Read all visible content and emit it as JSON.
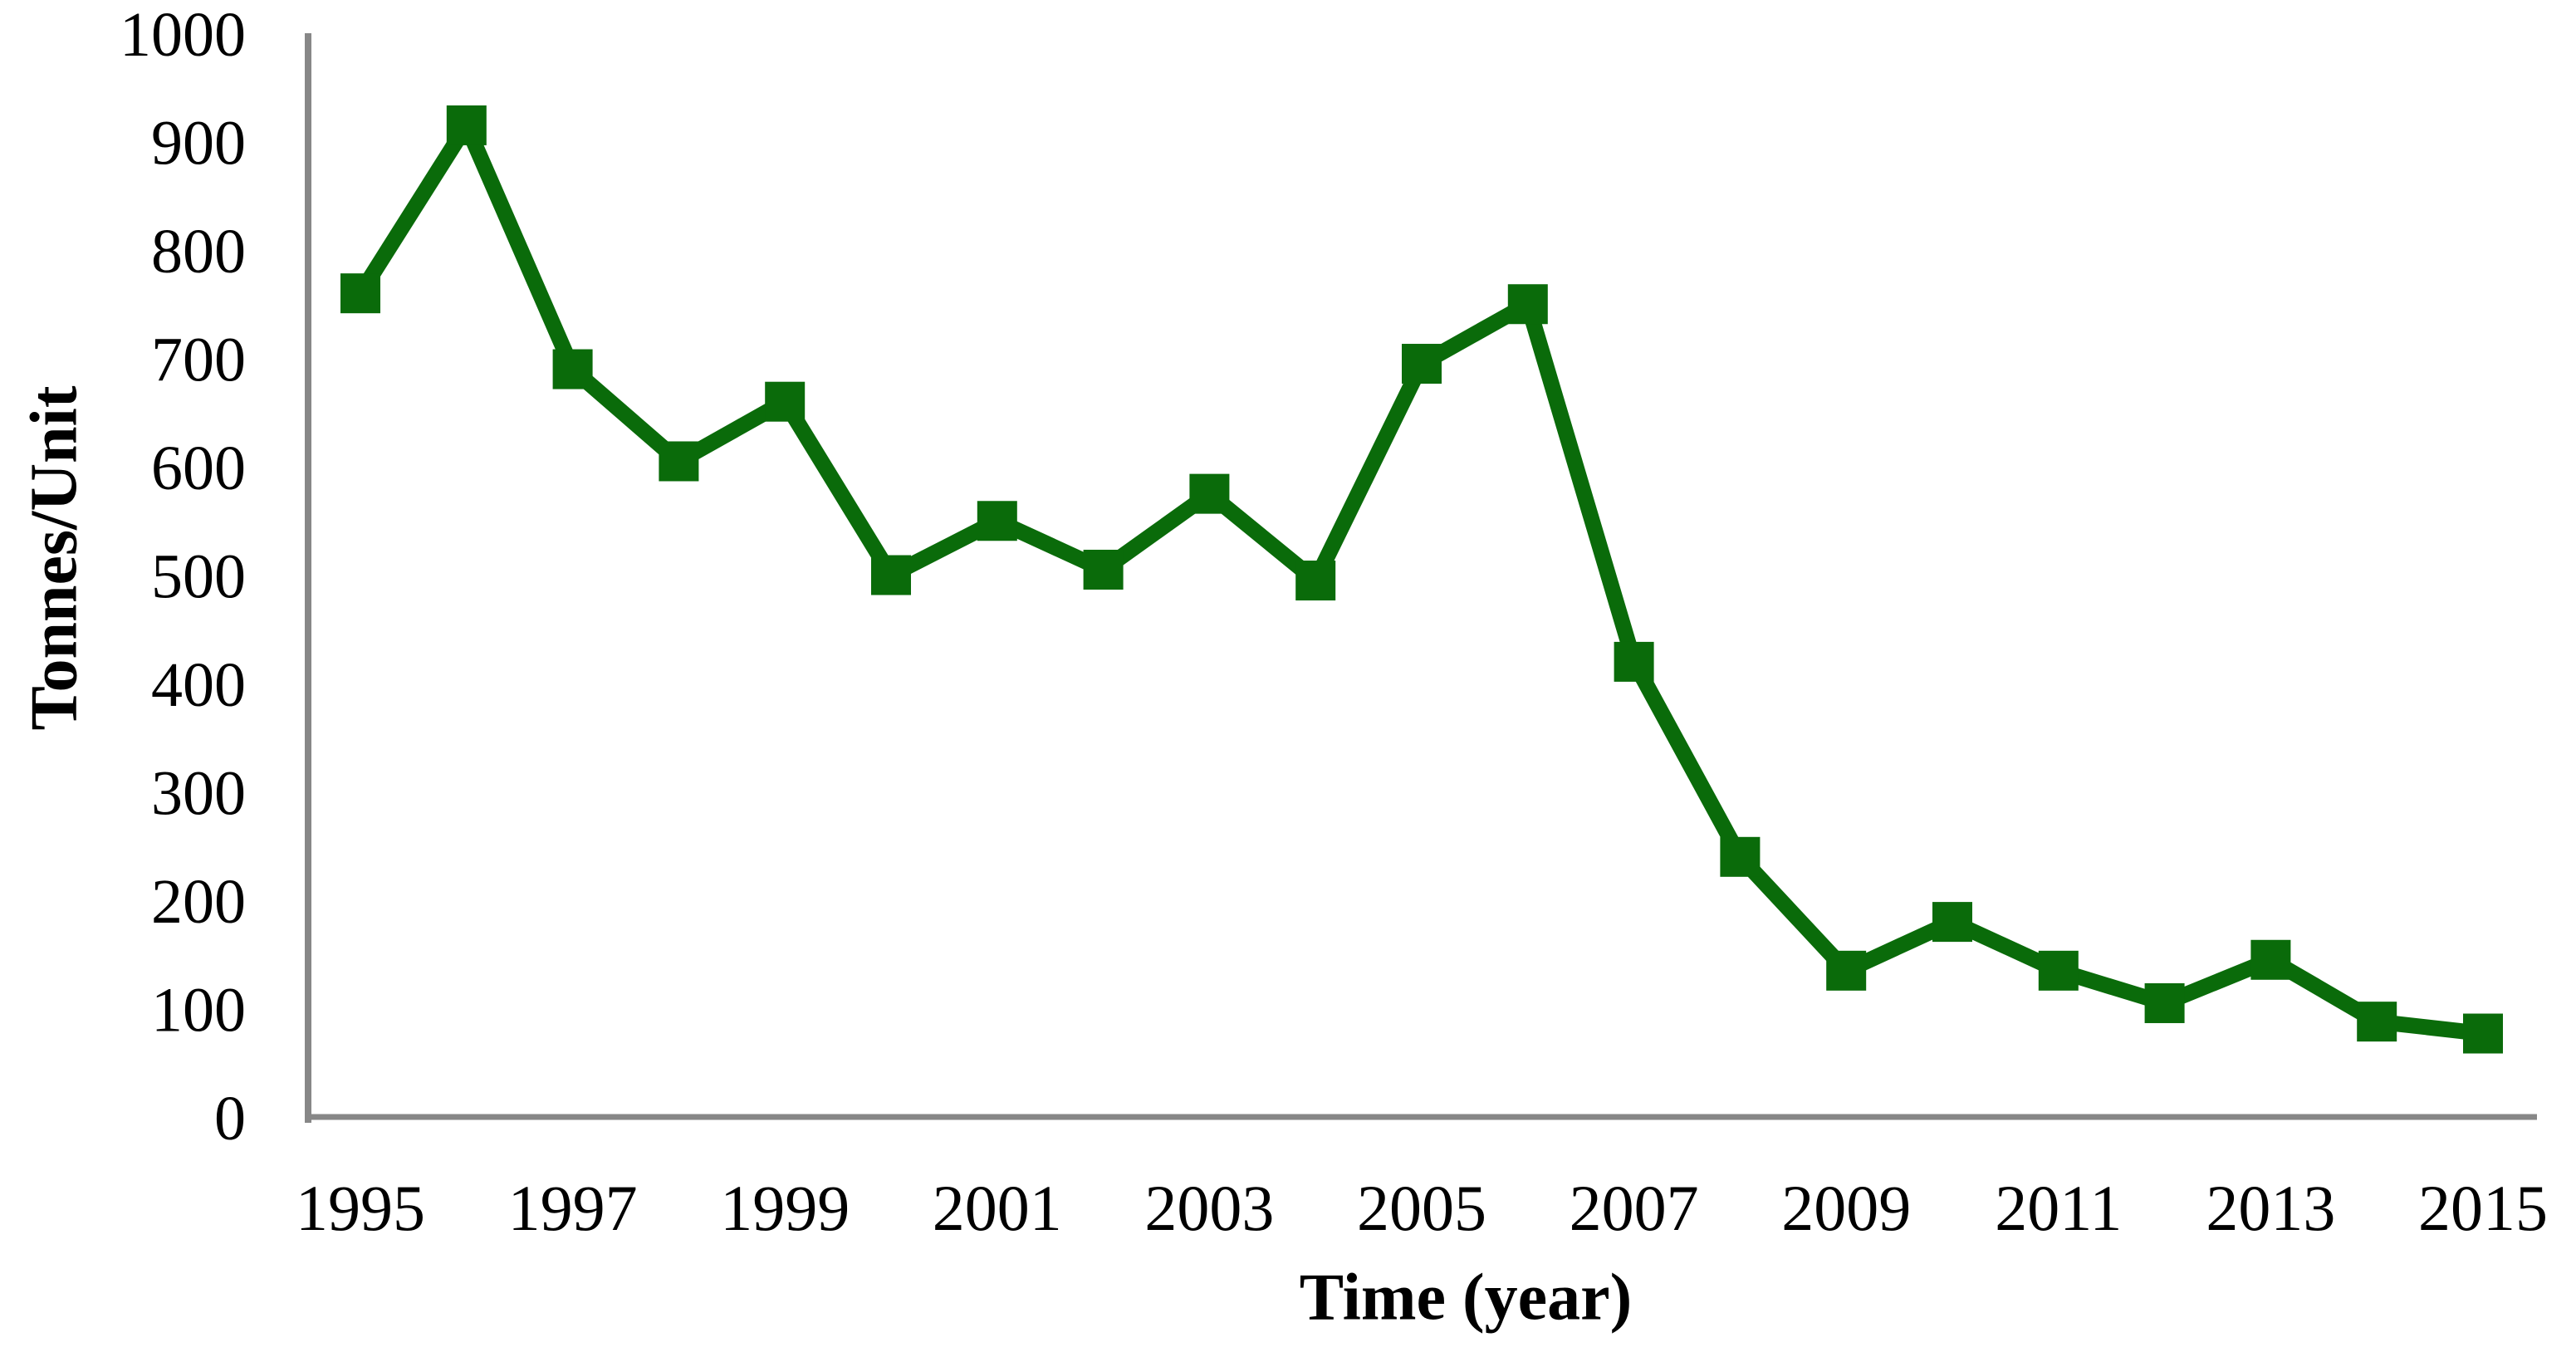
{
  "chart_data": {
    "type": "line",
    "title": "",
    "xlabel": "Time (year)",
    "ylabel": "Tonnes/Unit",
    "x": [
      1995,
      1996,
      1997,
      1998,
      1999,
      2000,
      2001,
      2002,
      2003,
      2004,
      2005,
      2006,
      2007,
      2008,
      2009,
      2010,
      2011,
      2012,
      2013,
      2014,
      2015
    ],
    "series": [
      {
        "name": "Tonnes per unit",
        "values": [
          760,
          915,
          690,
          605,
          660,
          500,
          550,
          505,
          575,
          495,
          695,
          750,
          420,
          240,
          135,
          180,
          135,
          105,
          145,
          88,
          77
        ]
      }
    ],
    "ylim": [
      0,
      1000
    ],
    "y_tick_labels": [
      "0",
      "100",
      "200",
      "300",
      "400",
      "500",
      "600",
      "700",
      "800",
      "900",
      "1000"
    ],
    "x_tick_labels": [
      "1995",
      "1997",
      "1999",
      "2001",
      "2003",
      "2005",
      "2007",
      "2009",
      "2011",
      "2013",
      "2015"
    ],
    "grid": false,
    "legend_position": "none",
    "marker_shape": "square",
    "line_color": "#0a6b0a",
    "axis_color": "#878787",
    "text_color": "#000000"
  }
}
